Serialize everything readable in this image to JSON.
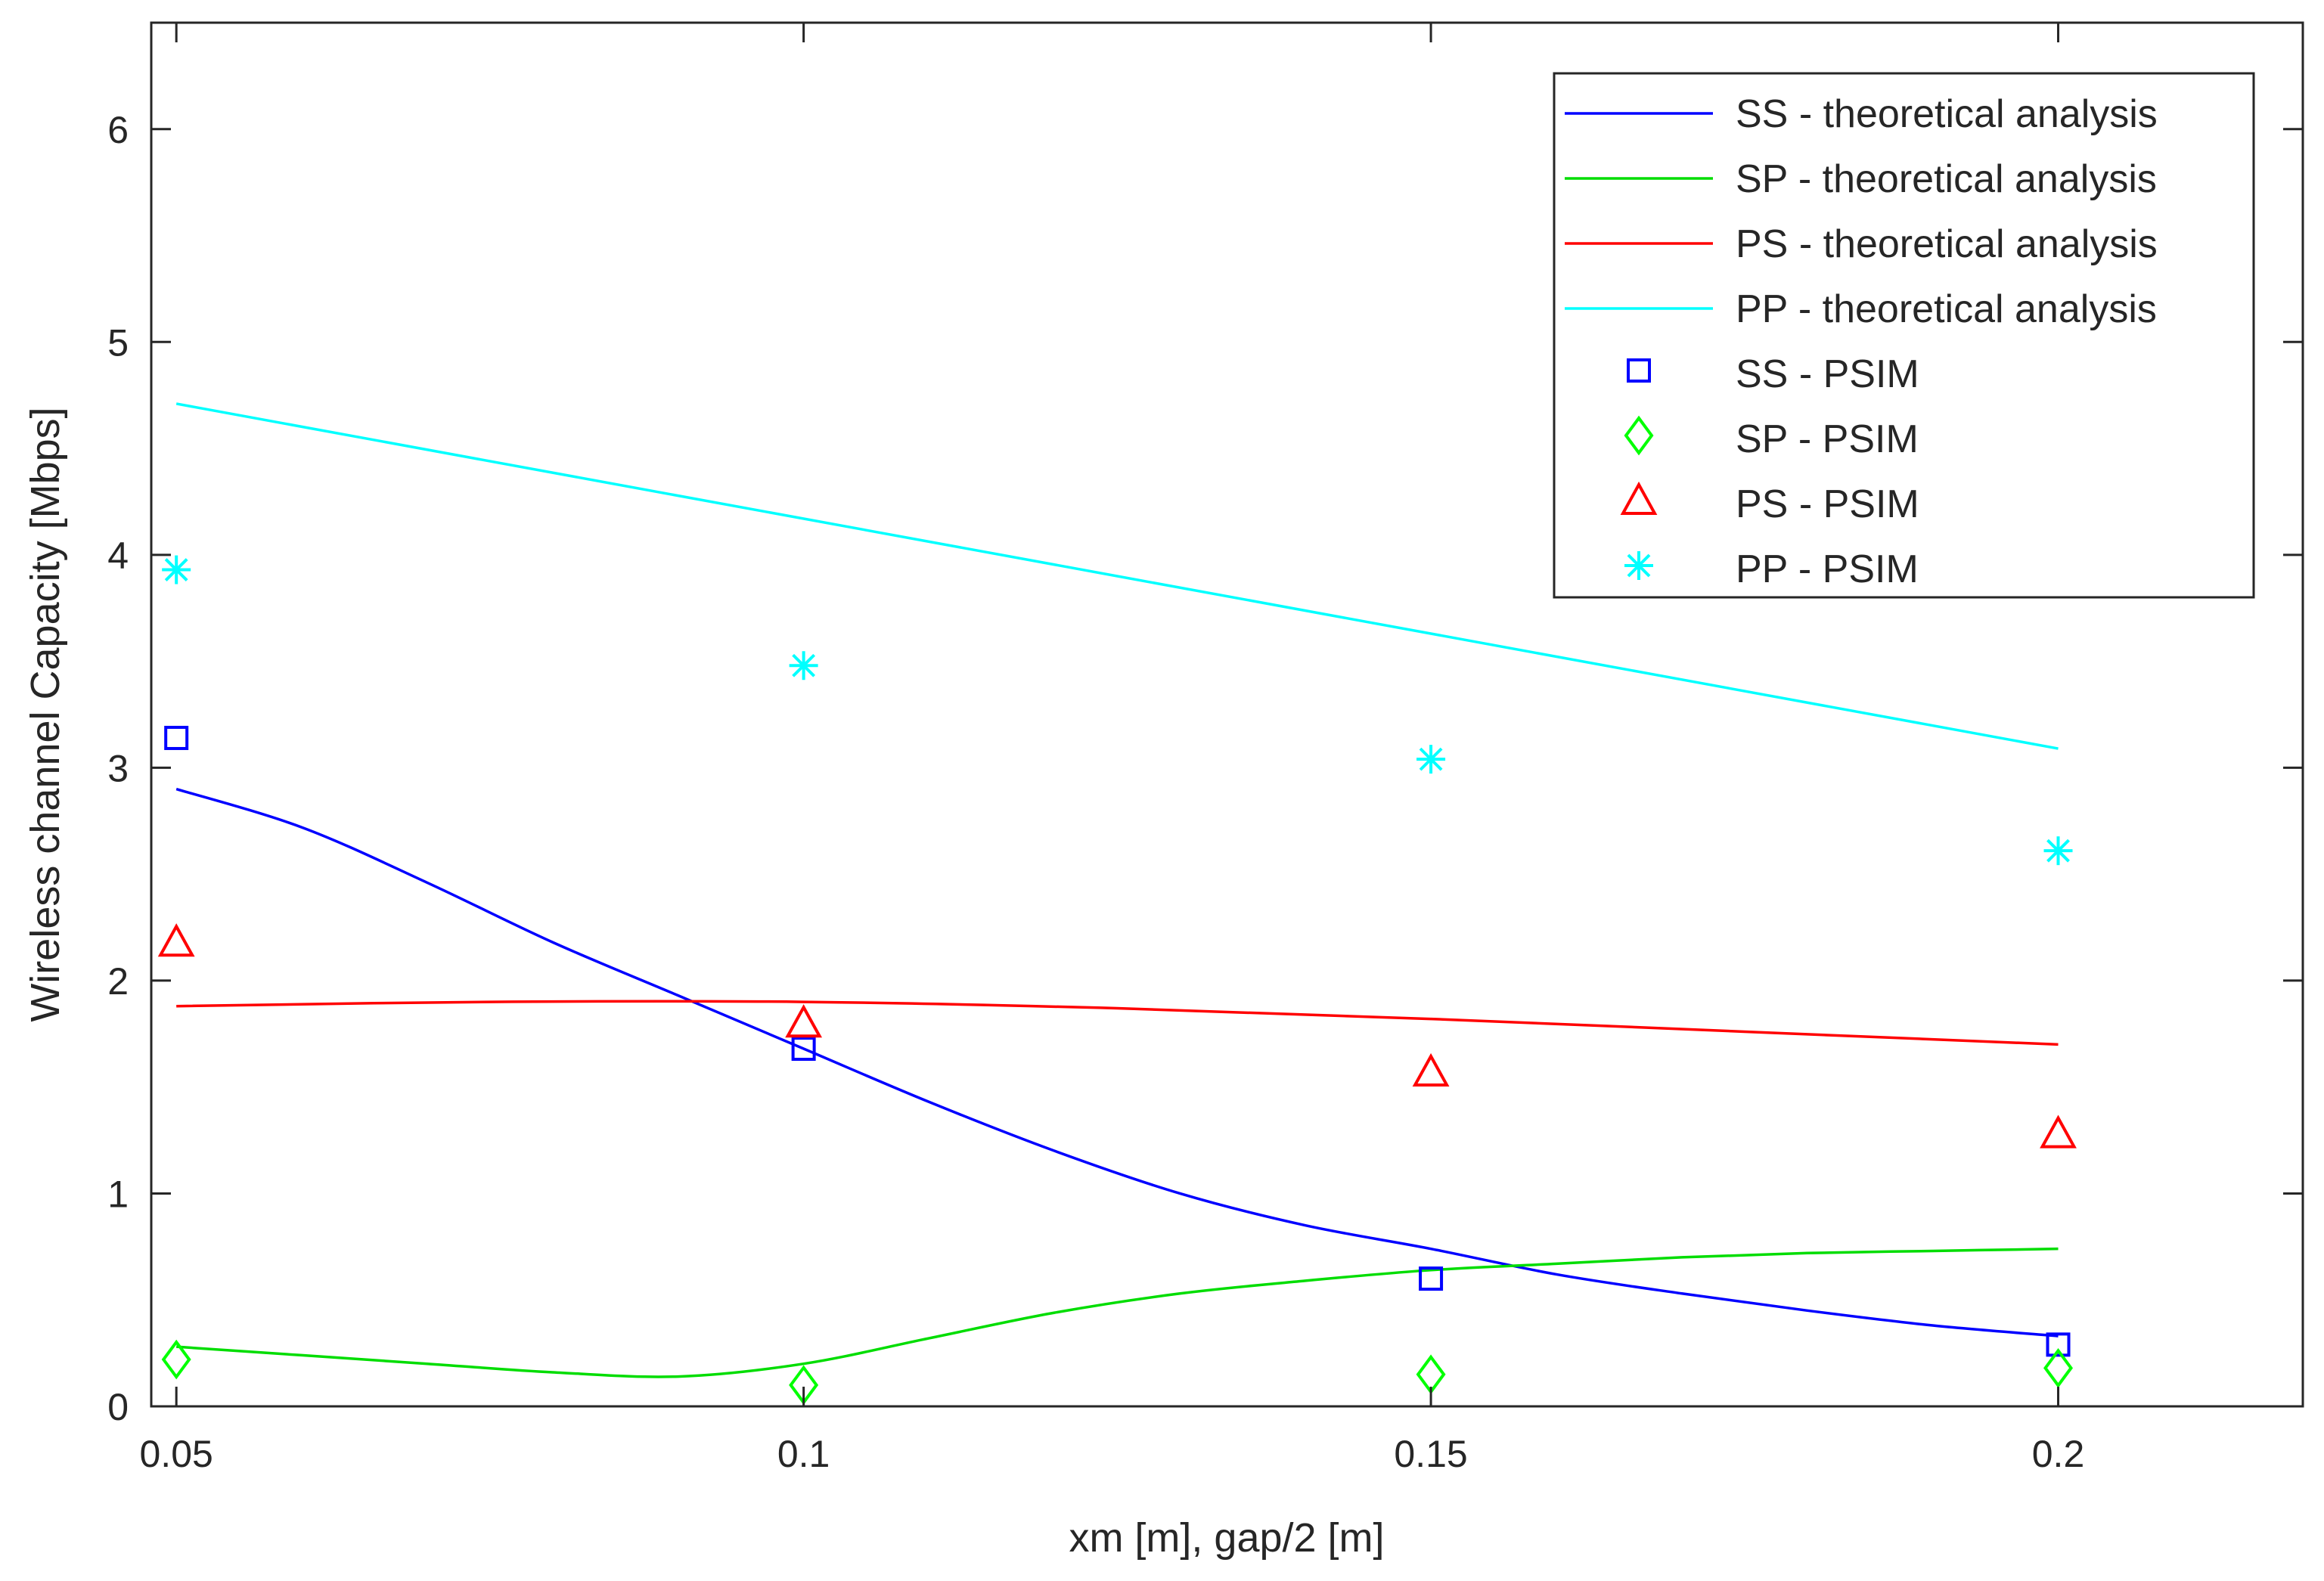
{
  "chart_data": {
    "type": "line",
    "title": "",
    "xlabel": "xm [m], gap/2 [m]",
    "ylabel": "Wireless channel Capacity [Mbps]",
    "xlim": [
      0.048,
      0.2195
    ],
    "ylim": [
      0,
      6.5
    ],
    "x_ticks": [
      0.05,
      0.1,
      0.15,
      0.2
    ],
    "x_tick_labels": [
      "0.05",
      "0.1",
      "0.15",
      "0.2"
    ],
    "y_ticks": [
      0,
      1,
      2,
      3,
      4,
      5,
      6
    ],
    "y_tick_labels": [
      "0",
      "1",
      "2",
      "3",
      "4",
      "5",
      "6"
    ],
    "grid": false,
    "legend_position": "top-right",
    "theory_series": [
      {
        "name": "SS - theoretical analysis",
        "color": "#0000ff",
        "x": [
          0.05,
          0.06,
          0.07,
          0.08,
          0.09,
          0.1,
          0.11,
          0.12,
          0.13,
          0.14,
          0.15,
          0.16,
          0.17,
          0.18,
          0.19,
          0.2
        ],
        "y": [
          2.9,
          2.72,
          2.46,
          2.18,
          1.93,
          1.68,
          1.43,
          1.2,
          1.0,
          0.85,
          0.74,
          0.62,
          0.53,
          0.45,
          0.38,
          0.33
        ]
      },
      {
        "name": "SP - theoretical analysis",
        "color": "#00dd00",
        "x": [
          0.05,
          0.06,
          0.07,
          0.08,
          0.09,
          0.1,
          0.11,
          0.12,
          0.13,
          0.14,
          0.15,
          0.16,
          0.17,
          0.18,
          0.19,
          0.2
        ],
        "y": [
          0.28,
          0.24,
          0.2,
          0.16,
          0.14,
          0.2,
          0.32,
          0.44,
          0.53,
          0.59,
          0.64,
          0.67,
          0.7,
          0.72,
          0.73,
          0.74
        ]
      },
      {
        "name": "PS - theoretical analysis",
        "color": "#ff0000",
        "x": [
          0.05,
          0.075,
          0.1,
          0.125,
          0.15,
          0.175,
          0.2
        ],
        "y": [
          1.88,
          1.9,
          1.9,
          1.87,
          1.82,
          1.76,
          1.7
        ]
      },
      {
        "name": "PP - theoretical analysis",
        "color": "#00ffff",
        "x": [
          0.05,
          0.2
        ],
        "y": [
          4.71,
          3.09
        ]
      }
    ],
    "psim_series": [
      {
        "name": "SS - PSIM",
        "marker": "square",
        "color": "#0000ff",
        "x": [
          0.05,
          0.1,
          0.15,
          0.2
        ],
        "y": [
          3.14,
          1.68,
          0.6,
          0.29
        ]
      },
      {
        "name": "SP - PSIM",
        "marker": "diamond",
        "color": "#00ff00",
        "x": [
          0.05,
          0.1,
          0.15,
          0.2
        ],
        "y": [
          0.22,
          0.1,
          0.15,
          0.18
        ]
      },
      {
        "name": "PS - PSIM",
        "marker": "triangle",
        "color": "#ff0000",
        "x": [
          0.05,
          0.1,
          0.15,
          0.2
        ],
        "y": [
          2.18,
          1.8,
          1.57,
          1.28
        ]
      },
      {
        "name": "PP - PSIM",
        "marker": "asterisk",
        "color": "#00ffff",
        "x": [
          0.05,
          0.1,
          0.15,
          0.2
        ],
        "y": [
          3.93,
          3.48,
          3.04,
          2.61
        ]
      }
    ]
  }
}
